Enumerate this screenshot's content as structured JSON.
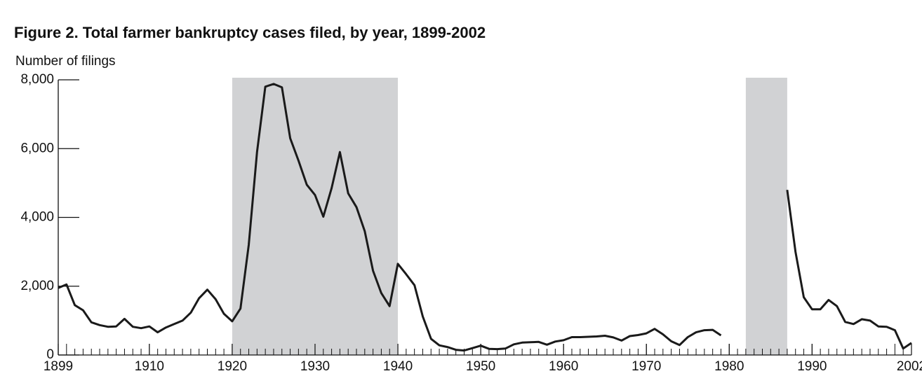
{
  "chart_data": {
    "type": "line",
    "title": "Figure 2. Total farmer bankruptcy cases filed, by year, 1899-2002",
    "ylabel": "Number of filings",
    "x": [
      1899,
      1900,
      1901,
      1902,
      1903,
      1904,
      1905,
      1906,
      1907,
      1908,
      1909,
      1910,
      1911,
      1912,
      1913,
      1914,
      1915,
      1916,
      1917,
      1918,
      1919,
      1920,
      1921,
      1922,
      1923,
      1924,
      1925,
      1926,
      1927,
      1928,
      1929,
      1930,
      1931,
      1932,
      1933,
      1934,
      1935,
      1936,
      1937,
      1938,
      1939,
      1940,
      1941,
      1942,
      1943,
      1944,
      1945,
      1946,
      1947,
      1948,
      1949,
      1950,
      1951,
      1952,
      1953,
      1954,
      1955,
      1956,
      1957,
      1958,
      1959,
      1960,
      1961,
      1962,
      1963,
      1964,
      1965,
      1966,
      1967,
      1968,
      1969,
      1970,
      1971,
      1972,
      1973,
      1974,
      1975,
      1976,
      1977,
      1978,
      1979,
      1980,
      1981,
      1982,
      1983,
      1984,
      1985,
      1986,
      1987,
      1988,
      1989,
      1990,
      1991,
      1992,
      1993,
      1994,
      1995,
      1996,
      1997,
      1998,
      1999,
      2000,
      2001,
      2002
    ],
    "values": [
      1950,
      2050,
      1450,
      1300,
      950,
      870,
      820,
      830,
      1050,
      820,
      780,
      830,
      660,
      800,
      900,
      1000,
      1230,
      1650,
      1900,
      1620,
      1200,
      980,
      1350,
      3200,
      5900,
      7800,
      7880,
      7780,
      6300,
      5650,
      4950,
      4650,
      4020,
      4850,
      5900,
      4700,
      4300,
      3600,
      2450,
      1800,
      1420,
      2650,
      2350,
      2030,
      1120,
      470,
      280,
      230,
      150,
      130,
      200,
      270,
      180,
      170,
      190,
      310,
      360,
      370,
      380,
      300,
      390,
      430,
      520,
      520,
      530,
      540,
      560,
      510,
      420,
      550,
      580,
      630,
      760,
      600,
      400,
      290,
      520,
      660,
      720,
      730,
      570,
      null,
      null,
      null,
      null,
      null,
      null,
      null,
      4800,
      3000,
      1680,
      1330,
      1330,
      1600,
      1420,
      960,
      900,
      1040,
      1000,
      830,
      820,
      720,
      190,
      350
    ],
    "color": "#1a1a1a",
    "shaded_ranges": [
      [
        1920,
        1940
      ],
      [
        1982,
        1987
      ]
    ],
    "shade_color": "#d1d2d4",
    "xlim": [
      1899,
      2002
    ],
    "xticks": [
      1899,
      1910,
      1920,
      1930,
      1940,
      1950,
      1960,
      1970,
      1980,
      1990,
      2002
    ],
    "ylim": [
      0,
      8000
    ],
    "yticks": [
      0,
      {
        "value": 2000,
        "label": "2,000"
      },
      {
        "value": 4000,
        "label": "4,000"
      },
      {
        "value": 6000,
        "label": "6,000"
      },
      {
        "value": 8000,
        "label": "8,000"
      }
    ]
  }
}
